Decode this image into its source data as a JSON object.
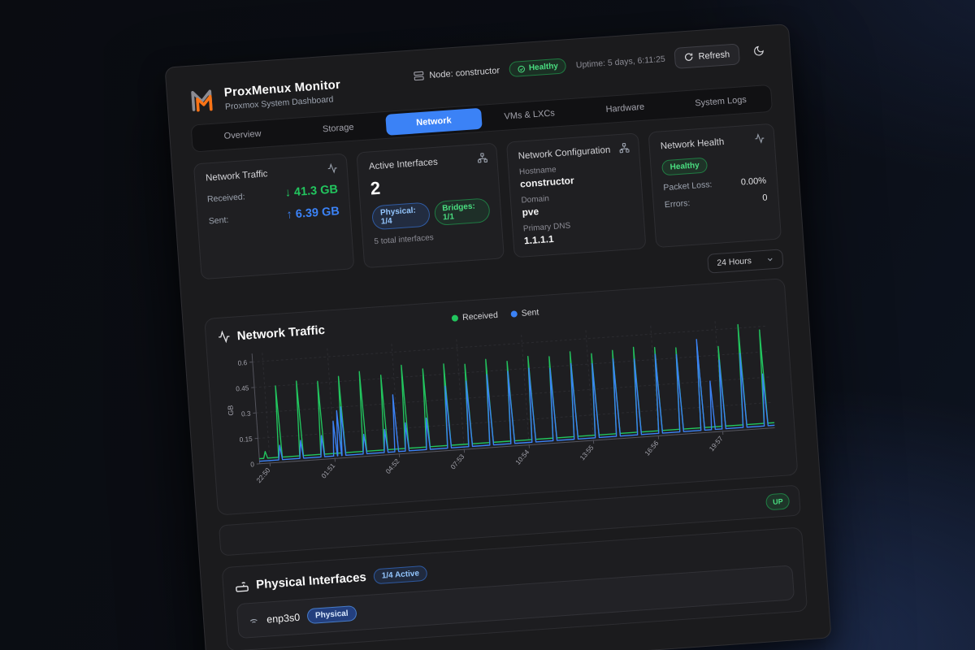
{
  "header": {
    "node_label": "Node: constructor",
    "health_badge": "Healthy",
    "uptime": "Uptime: 5 days, 6:11:25",
    "refresh_label": "Refresh"
  },
  "brand": {
    "title": "ProxMenux Monitor",
    "subtitle": "Proxmox System Dashboard"
  },
  "tabs": [
    {
      "label": "Overview"
    },
    {
      "label": "Storage"
    },
    {
      "label": "Network",
      "active": true
    },
    {
      "label": "VMs & LXCs"
    },
    {
      "label": "Hardware"
    },
    {
      "label": "System Logs"
    }
  ],
  "cards": {
    "traffic": {
      "title": "Network Traffic",
      "received_label": "Received:",
      "received_value": "↓ 41.3 GB",
      "sent_label": "Sent:",
      "sent_value": "↑ 6.39 GB"
    },
    "interfaces": {
      "title": "Active Interfaces",
      "count": "2",
      "badge_physical": "Physical: 1/4",
      "badge_bridges": "Bridges: 1/1",
      "total": "5 total interfaces"
    },
    "config": {
      "title": "Network Configuration",
      "fields": [
        {
          "label": "Hostname",
          "value": "constructor"
        },
        {
          "label": "Domain",
          "value": "pve"
        },
        {
          "label": "Primary DNS",
          "value": "1.1.1.1"
        }
      ]
    },
    "health": {
      "title": "Network Health",
      "status": "Healthy",
      "rows": [
        {
          "label": "Packet Loss:",
          "value": "0.00%"
        },
        {
          "label": "Errors:",
          "value": "0"
        }
      ]
    }
  },
  "time_range": {
    "selected": "24 Hours"
  },
  "status_row": {
    "up_badge": "UP"
  },
  "physical": {
    "title": "Physical Interfaces",
    "active_badge": "1/4 Active",
    "rows": [
      {
        "name": "enp3s0",
        "type_badge": "Physical"
      }
    ]
  },
  "colors": {
    "accent_blue": "#3b82f6",
    "green": "#22c55e",
    "orange_logo": "#f97316"
  },
  "chart_data": {
    "type": "line",
    "title": "Network Traffic",
    "ylabel": "GB",
    "legend": [
      "Received",
      "Sent"
    ],
    "legend_position": "top-center",
    "grid": true,
    "ylim": [
      0,
      0.65
    ],
    "y_ticks": [
      0,
      0.15,
      0.3,
      0.45,
      0.6
    ],
    "x_tick_labels": [
      "22:50",
      "01:51",
      "04:52",
      "07:53",
      "10:54",
      "13:55",
      "16:56",
      "19:57"
    ],
    "x_tick_pos": [
      0.02,
      0.146,
      0.271,
      0.397,
      0.523,
      0.648,
      0.774,
      0.899
    ],
    "x_range_hours": 24.4,
    "series": [
      {
        "name": "Received",
        "color": "#22c55e",
        "baseline": 0.03,
        "spikes": [
          [
            0.3,
            0.07
          ],
          [
            1,
            0.45
          ],
          [
            2,
            0.47
          ],
          [
            3,
            0.46
          ],
          [
            4,
            0.48
          ],
          [
            5,
            0.5
          ],
          [
            6,
            0.47
          ],
          [
            7,
            0.52
          ],
          [
            8,
            0.49
          ],
          [
            9,
            0.51
          ],
          [
            10,
            0.5
          ],
          [
            11,
            0.52
          ],
          [
            12,
            0.5
          ],
          [
            13,
            0.52
          ],
          [
            14,
            0.51
          ],
          [
            15,
            0.53
          ],
          [
            16,
            0.51
          ],
          [
            17,
            0.52
          ],
          [
            18,
            0.53
          ],
          [
            19,
            0.52
          ],
          [
            20,
            0.51
          ],
          [
            21,
            0.52
          ],
          [
            22,
            0.5
          ],
          [
            23,
            0.62
          ],
          [
            24,
            0.58
          ]
        ]
      },
      {
        "name": "Sent",
        "color": "#3b82f6",
        "baseline": 0.015,
        "spikes": [
          [
            1,
            0.1
          ],
          [
            2,
            0.12
          ],
          [
            3,
            0.14
          ],
          [
            3.6,
            0.22
          ],
          [
            3.8,
            0.28
          ],
          [
            4,
            0.3
          ],
          [
            5,
            0.13
          ],
          [
            6,
            0.15
          ],
          [
            6.5,
            0.35
          ],
          [
            7,
            0.18
          ],
          [
            8,
            0.2
          ],
          [
            9,
            0.38
          ],
          [
            10,
            0.4
          ],
          [
            11,
            0.43
          ],
          [
            12,
            0.44
          ],
          [
            13,
            0.45
          ],
          [
            14,
            0.44
          ],
          [
            15,
            0.46
          ],
          [
            16,
            0.45
          ],
          [
            17,
            0.47
          ],
          [
            18,
            0.46
          ],
          [
            19,
            0.48
          ],
          [
            20,
            0.47
          ],
          [
            21,
            0.55
          ],
          [
            21.5,
            0.3
          ],
          [
            22,
            0.42
          ],
          [
            23,
            0.45
          ],
          [
            24,
            0.32
          ]
        ]
      }
    ]
  }
}
